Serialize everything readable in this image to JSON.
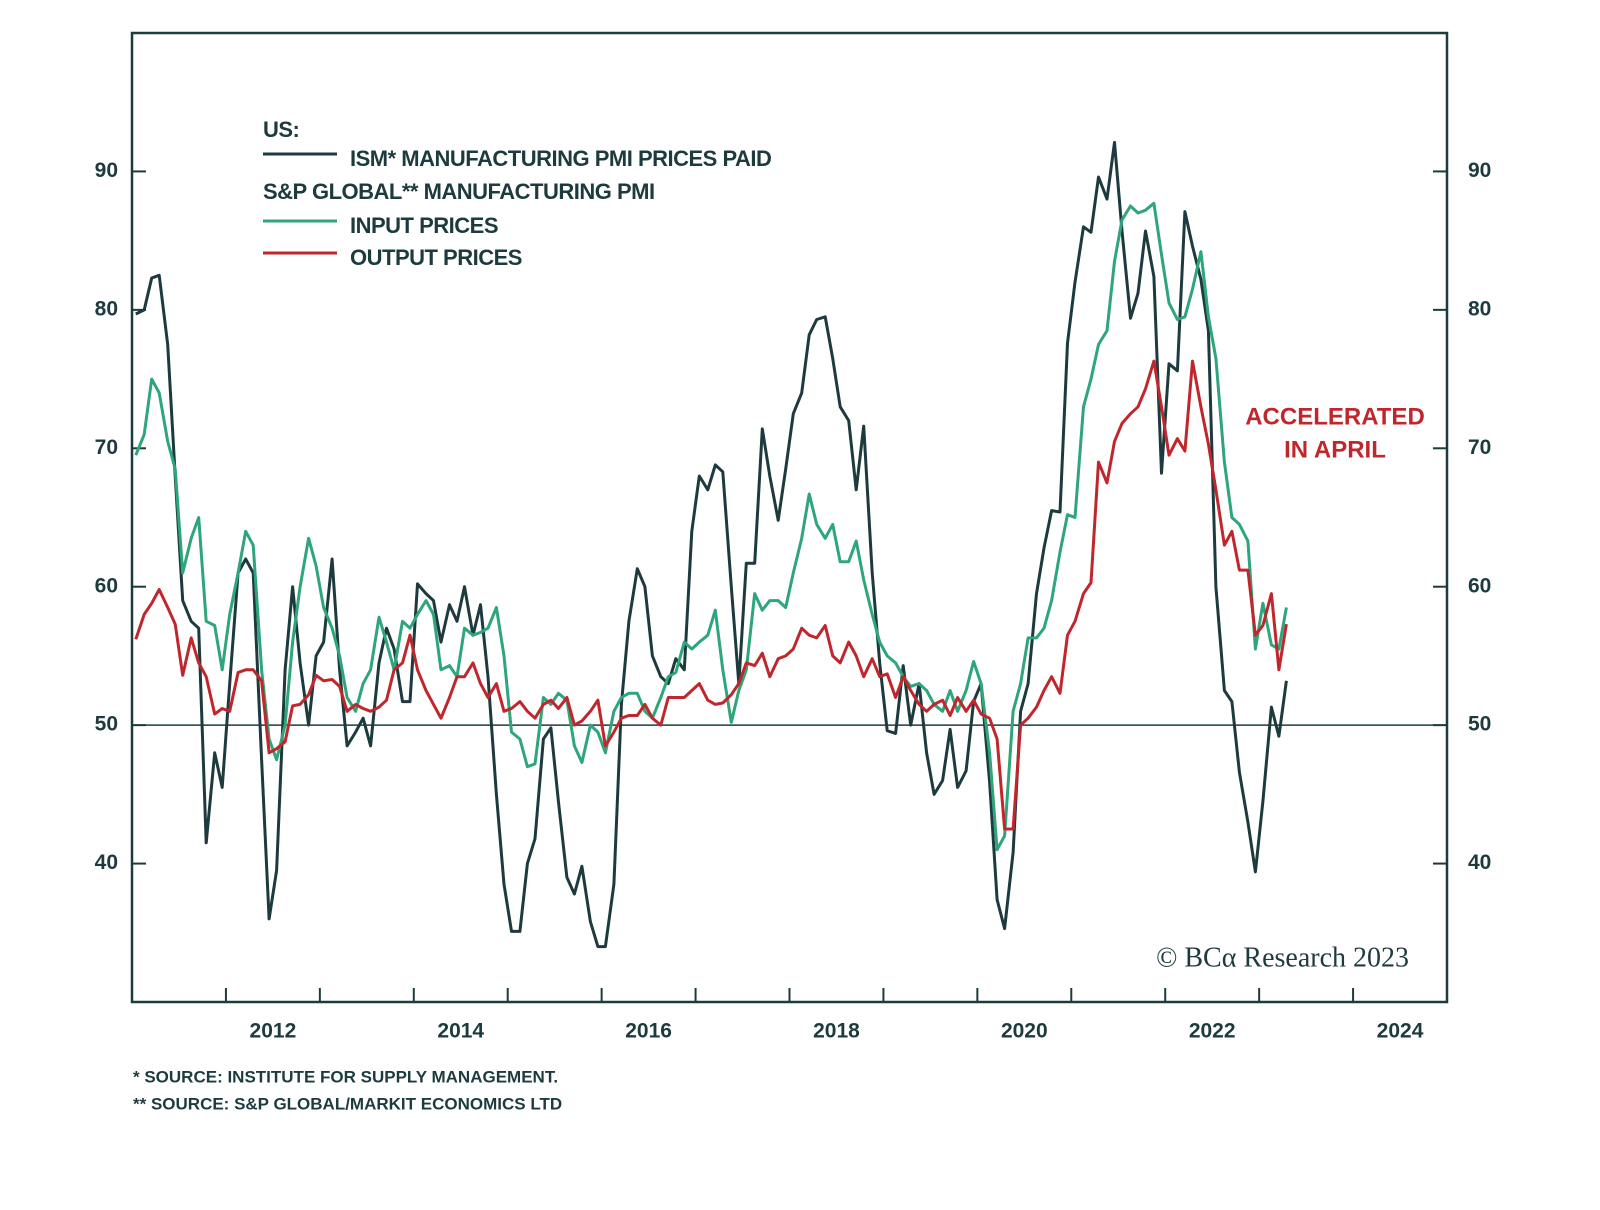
{
  "chart_data": {
    "type": "line",
    "legend": {
      "title": "US:",
      "group_label": "S&P GLOBAL** MANUFACTURING PMI"
    },
    "annotation": {
      "text": [
        "ACCELERATED",
        "IN APRIL"
      ],
      "color": "#c0272d"
    },
    "source": "© BCα Research 2023",
    "footnotes": [
      "*  SOURCE: INSTITUTE FOR SUPPLY MANAGEMENT.",
      "** SOURCE: S&P GLOBAL/MARKIT ECONOMICS LTD"
    ],
    "xlim": [
      2011,
      2025
    ],
    "xticks": [
      {
        "value": 2012.5,
        "label": "2012"
      },
      {
        "value": 2014.5,
        "label": "2014"
      },
      {
        "value": 2016.5,
        "label": "2016"
      },
      {
        "value": 2018.5,
        "label": "2018"
      },
      {
        "value": 2020.5,
        "label": "2020"
      },
      {
        "value": 2022.5,
        "label": "2022"
      },
      {
        "value": 2024.5,
        "label": "2024"
      }
    ],
    "xminorticks": [
      2012,
      2013,
      2014,
      2015,
      2016,
      2017,
      2018,
      2019,
      2020,
      2021,
      2022,
      2023,
      2024
    ],
    "ylim": [
      30,
      100
    ],
    "yticks": [
      40,
      50,
      60,
      70,
      80,
      90
    ],
    "y2lim": [
      30,
      100
    ],
    "y2ticks": [
      40,
      50,
      60,
      70,
      80,
      90
    ],
    "hline": 50,
    "x": [
      2011.04,
      2011.13,
      2011.21,
      2011.29,
      2011.38,
      2011.46,
      2011.54,
      2011.63,
      2011.71,
      2011.79,
      2011.88,
      2011.96,
      2012.04,
      2012.13,
      2012.21,
      2012.29,
      2012.38,
      2012.46,
      2012.54,
      2012.63,
      2012.71,
      2012.79,
      2012.88,
      2012.96,
      2013.04,
      2013.13,
      2013.21,
      2013.29,
      2013.38,
      2013.46,
      2013.54,
      2013.63,
      2013.71,
      2013.79,
      2013.88,
      2013.96,
      2014.04,
      2014.13,
      2014.21,
      2014.29,
      2014.38,
      2014.46,
      2014.54,
      2014.63,
      2014.71,
      2014.79,
      2014.88,
      2014.96,
      2015.04,
      2015.13,
      2015.21,
      2015.29,
      2015.38,
      2015.46,
      2015.54,
      2015.63,
      2015.71,
      2015.79,
      2015.88,
      2015.96,
      2016.04,
      2016.13,
      2016.21,
      2016.29,
      2016.38,
      2016.46,
      2016.54,
      2016.63,
      2016.71,
      2016.79,
      2016.88,
      2016.96,
      2017.04,
      2017.13,
      2017.21,
      2017.29,
      2017.38,
      2017.46,
      2017.54,
      2017.63,
      2017.71,
      2017.79,
      2017.88,
      2017.96,
      2018.04,
      2018.13,
      2018.21,
      2018.29,
      2018.38,
      2018.46,
      2018.54,
      2018.63,
      2018.71,
      2018.79,
      2018.88,
      2018.96,
      2019.04,
      2019.13,
      2019.21,
      2019.29,
      2019.38,
      2019.46,
      2019.54,
      2019.63,
      2019.71,
      2019.79,
      2019.88,
      2019.96,
      2020.04,
      2020.13,
      2020.21,
      2020.29,
      2020.38,
      2020.46,
      2020.54,
      2020.63,
      2020.71,
      2020.79,
      2020.88,
      2020.96,
      2021.04,
      2021.13,
      2021.21,
      2021.29,
      2021.38,
      2021.46,
      2021.54,
      2021.63,
      2021.71,
      2021.79,
      2021.88,
      2021.96,
      2022.04,
      2022.13,
      2022.21,
      2022.29,
      2022.38,
      2022.46,
      2022.54,
      2022.63,
      2022.71,
      2022.79,
      2022.88,
      2022.96,
      2023.04,
      2023.13,
      2023.21,
      2023.29
    ],
    "series": [
      {
        "name": "ISM* MANUFACTURING PMI PRICES PAID",
        "color": "#1d3b3f",
        "values": [
          79.7,
          80,
          82.3,
          82.5,
          77.5,
          68,
          59,
          57.5,
          57,
          41.5,
          48,
          45.5,
          53,
          61,
          62,
          61,
          47.5,
          36,
          39.5,
          54,
          60,
          54.5,
          50,
          55,
          56,
          62,
          54,
          48.5,
          49.5,
          50.5,
          48.5,
          54.5,
          57,
          55.5,
          51.7,
          51.7,
          60.2,
          59.5,
          59,
          56,
          58.7,
          57.5,
          60,
          56.5,
          58.7,
          53.5,
          45,
          38.5,
          35.1,
          35.1,
          40,
          41.8,
          49,
          49.8,
          44.5,
          39,
          37.8,
          39.8,
          35.8,
          34,
          34,
          38.5,
          51.5,
          57.5,
          61.3,
          60,
          55,
          53.5,
          53,
          54.8,
          54,
          64,
          68,
          67,
          68.8,
          68.3,
          60,
          53,
          61.7,
          61.7,
          71.4,
          68,
          64.8,
          68.5,
          72.5,
          74,
          78.2,
          79.3,
          79.5,
          76.5,
          73,
          72,
          67,
          71.6,
          61,
          54.5,
          49.6,
          49.4,
          54.3,
          50,
          53,
          48,
          45,
          46,
          49.7,
          45.5,
          46.7,
          51.7,
          53,
          45.9,
          37.4,
          35.3,
          40.8,
          51,
          53,
          59.5,
          62.8,
          65.5,
          65.4,
          77.6,
          82,
          86,
          85.6,
          89.6,
          88,
          92.1,
          85.7,
          79.4,
          81.2,
          85.7,
          82.4,
          68.2,
          76.1,
          75.6,
          87.1,
          84.6,
          82.2,
          78.5,
          60,
          52.5,
          51.7,
          46.6,
          43,
          39.4,
          44.5,
          51.3,
          49.2,
          53.2
        ]
      },
      {
        "name": "INPUT PRICES",
        "color": "#2ea57a",
        "values": [
          69.5,
          71,
          75,
          74,
          70.5,
          68.5,
          61,
          63.5,
          65,
          57.5,
          57.2,
          54,
          58,
          61,
          64,
          63,
          54,
          49,
          47.5,
          50,
          56,
          60,
          63.5,
          61.5,
          58.5,
          57,
          55,
          52,
          51,
          53,
          54,
          57.8,
          56,
          54,
          57.5,
          57,
          58,
          59,
          58,
          54,
          54.3,
          53.5,
          57,
          56.5,
          56.7,
          57,
          58.5,
          55,
          49.5,
          49,
          47,
          47.2,
          52,
          51.5,
          52.3,
          51.8,
          48.5,
          47.3,
          50,
          49.5,
          48,
          51,
          52,
          52.3,
          52.3,
          51,
          50.5,
          52,
          53.5,
          53.8,
          56,
          55.5,
          56,
          56.5,
          58.3,
          54,
          50.2,
          52.5,
          54,
          59.5,
          58.3,
          59,
          59,
          58.5,
          61,
          63.5,
          66.7,
          64.5,
          63.5,
          64.5,
          61.8,
          61.8,
          63.3,
          60.5,
          58,
          56,
          55,
          54.5,
          53.5,
          52.8,
          53,
          52.5,
          51.5,
          51,
          52.5,
          51,
          52.5,
          54.6,
          53,
          48,
          41,
          42,
          51,
          53,
          56.3,
          56.3,
          57,
          59,
          62.5,
          65.2,
          65,
          73,
          75,
          77.5,
          78.5,
          83.5,
          86.5,
          87.5,
          87,
          87.2,
          87.7,
          84,
          80.5,
          79.3,
          79.5,
          81.5,
          84.2,
          79.5,
          76.5,
          69,
          65,
          64.5,
          63.3,
          55.5,
          58.8,
          55.8,
          55.5,
          58.5
        ]
      },
      {
        "name": "OUTPUT PRICES",
        "color": "#c0272d",
        "values": [
          56.2,
          58,
          58.8,
          59.8,
          58.5,
          57.3,
          53.6,
          56.3,
          54.5,
          53.5,
          50.8,
          51.2,
          51,
          53.8,
          54,
          54,
          53.2,
          48,
          48.3,
          48.8,
          51.4,
          51.5,
          52.2,
          53.6,
          53.2,
          53.3,
          52.8,
          51,
          51.5,
          51.2,
          51,
          51.3,
          51.8,
          54,
          54.5,
          56.5,
          54,
          52.5,
          51.5,
          50.5,
          52,
          53.5,
          53.5,
          54.5,
          53,
          52,
          53,
          51,
          51.2,
          51.7,
          51,
          50.5,
          51.5,
          51.8,
          51.2,
          52,
          50,
          50.3,
          51,
          51.8,
          48.5,
          49.5,
          50.5,
          50.7,
          50.7,
          51.5,
          50.5,
          50,
          52,
          52,
          52,
          52.5,
          53,
          51.8,
          51.5,
          51.6,
          52.2,
          53,
          54.5,
          54.3,
          55.2,
          53.5,
          54.8,
          55,
          55.5,
          57,
          56.5,
          56.3,
          57.2,
          55,
          54.5,
          56,
          55,
          53.5,
          54.8,
          53.5,
          53.7,
          52,
          53.5,
          52.5,
          51.5,
          51,
          51.5,
          51.8,
          50.7,
          52,
          51,
          51.8,
          50.8,
          50.5,
          49,
          42.5,
          42.5,
          50,
          50.5,
          51.3,
          52.5,
          53.5,
          52.3,
          56.5,
          57.5,
          59.5,
          60.3,
          69,
          67.5,
          70.5,
          71.8,
          72.5,
          73,
          74.3,
          76.3,
          73,
          69.5,
          70.7,
          69.8,
          76.3,
          73,
          70.3,
          67,
          63,
          64,
          61.2,
          61.2,
          56.5,
          57.2,
          59.5,
          54,
          57.3
        ]
      }
    ]
  }
}
